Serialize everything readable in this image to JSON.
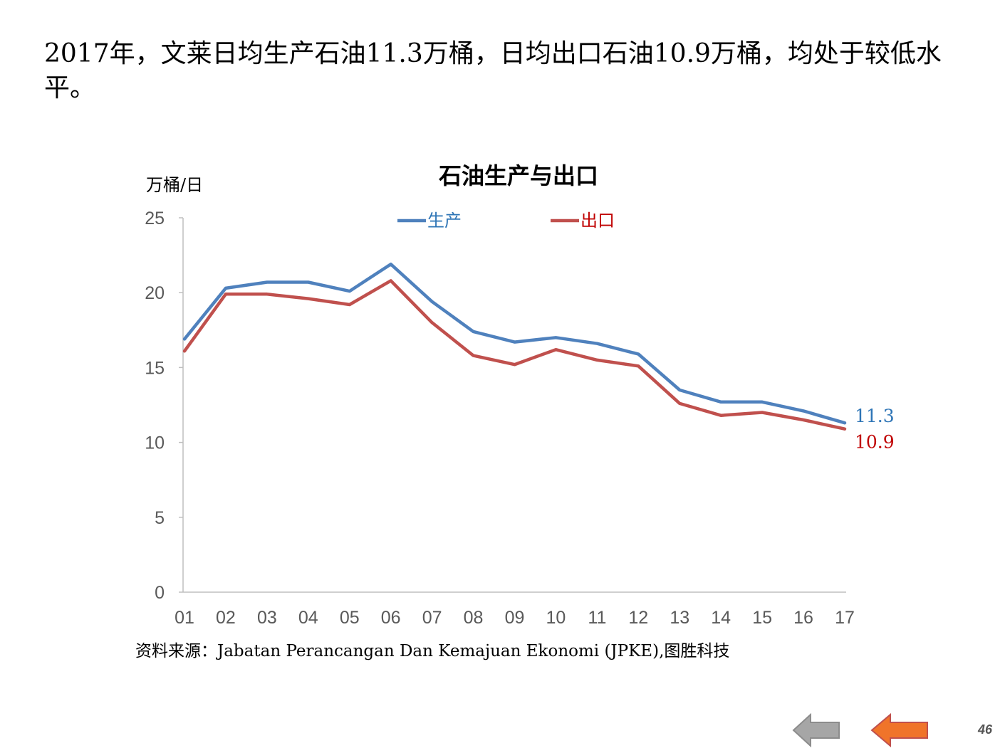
{
  "slide": {
    "headline": "2017年，文莱日均生产石油11.3万桶，日均出口石油10.9万桶，均处于较低水平。",
    "source": "资料来源：Jabatan Perancangan Dan Kemajuan Ekonomi (JPKE),图胜科技",
    "page_number": "46"
  },
  "nav": {
    "prev_icon": "arrow-left-icon",
    "next_icon": "arrow-left-icon",
    "prev_color": "#a6a6a6",
    "next_color": "#f0742a"
  },
  "chart_data": {
    "type": "line",
    "title": "石油生产与出口",
    "ylabel": "万桶/日",
    "xlabel": "",
    "ylim": [
      0,
      25
    ],
    "yticks": [
      0,
      5,
      10,
      15,
      20,
      25
    ],
    "categories": [
      "01",
      "02",
      "03",
      "04",
      "05",
      "06",
      "07",
      "08",
      "09",
      "10",
      "11",
      "12",
      "13",
      "14",
      "15",
      "16",
      "17"
    ],
    "series": [
      {
        "name": "生产",
        "color": "#4f81bd",
        "values": [
          16.9,
          20.3,
          20.7,
          20.7,
          20.1,
          21.9,
          19.4,
          17.4,
          16.7,
          17.0,
          16.6,
          15.9,
          13.5,
          12.7,
          12.7,
          12.1,
          11.3
        ],
        "end_label": "11.3",
        "label_color": "#2e75b6"
      },
      {
        "name": "出口",
        "color": "#c0504d",
        "values": [
          16.1,
          19.9,
          19.9,
          19.6,
          19.2,
          20.8,
          18.0,
          15.8,
          15.2,
          16.2,
          15.5,
          15.1,
          12.6,
          11.8,
          12.0,
          11.5,
          10.9
        ],
        "end_label": "10.9",
        "label_color": "#c00000"
      }
    ],
    "legend_position": "top-center",
    "grid": false
  }
}
